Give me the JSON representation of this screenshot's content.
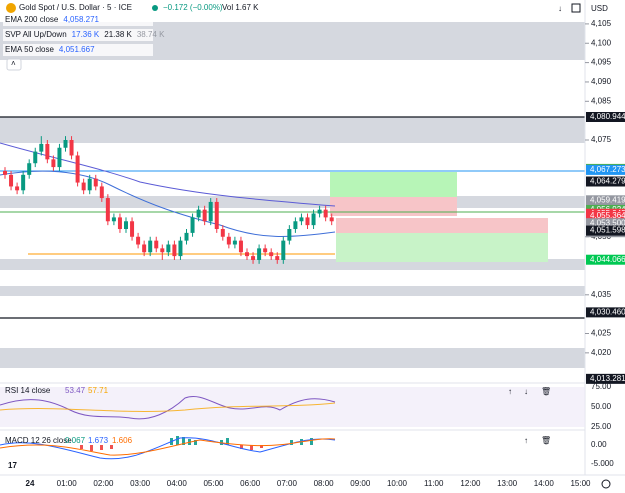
{
  "header": {
    "symbol": "Gold Spot / U.S. Dollar · 5 · ICE",
    "change": "−0.172 (−0.00%)",
    "volume": "Vol 1.67 K",
    "currency": "USD"
  },
  "legend": [
    {
      "name": "EMA 200 close",
      "values": [
        "4,058.271"
      ]
    },
    {
      "name": "SVP All Up/Down",
      "values": [
        "17.36 K",
        "21.38 K",
        "38.74 K"
      ]
    },
    {
      "name": "EMA 50 close",
      "values": [
        "4,051.667"
      ]
    }
  ],
  "price_axis": {
    "ticks": [
      {
        "value": 4105,
        "label": "4,105"
      },
      {
        "value": 4100,
        "label": "4,100"
      },
      {
        "value": 4095,
        "label": "4,095"
      },
      {
        "value": 4090,
        "label": "4,090"
      },
      {
        "value": 4085,
        "label": "4,085"
      },
      {
        "value": 4075,
        "label": "4,075"
      },
      {
        "value": 4050,
        "label": "4,050"
      },
      {
        "value": 4035,
        "label": "4,035"
      },
      {
        "value": 4025,
        "label": "4,025"
      },
      {
        "value": 4020,
        "label": "4,020"
      }
    ],
    "labels": [
      {
        "value": 4080.944,
        "label": "4,080.944",
        "color": "#131722"
      },
      {
        "value": 4067.531,
        "label": "4,067.531",
        "color": "#4caf50"
      },
      {
        "value": 4067.273,
        "label": "4,067.273",
        "color": "#2196f3"
      },
      {
        "value": 4064.279,
        "label": "4,064.279",
        "color": "#131722"
      },
      {
        "value": 4059.419,
        "label": "4,059.419",
        "color": "#9598a1"
      },
      {
        "value": 4056.924,
        "label": "4,056.924",
        "color": "#4caf50"
      },
      {
        "value": 4055.943,
        "label": "4,055.943",
        "color": "#f23645"
      },
      {
        "value": 4055.364,
        "label": "4,055.364",
        "color": "#f23645"
      },
      {
        "value": 4053.5,
        "label": "4,053.500",
        "color": "#9598a1"
      },
      {
        "value": 4051.598,
        "label": "4,051.598",
        "color": "#131722"
      },
      {
        "value": 4044.066,
        "label": "4,044.066",
        "color": "#00c853"
      },
      {
        "value": 4030.46,
        "label": "4,030.460",
        "color": "#131722"
      },
      {
        "value": 4013.281,
        "label": "4,013.281",
        "color": "#131722"
      }
    ],
    "countdown": "04:05"
  },
  "time_axis": [
    "24",
    "01:00",
    "02:00",
    "03:00",
    "04:00",
    "05:00",
    "06:00",
    "07:00",
    "08:00",
    "09:00",
    "10:00",
    "11:00",
    "12:00",
    "13:00",
    "14:00",
    "15:00"
  ],
  "candles": [
    [
      4067,
      4068,
      4065,
      4066
    ],
    [
      4066,
      4067,
      4062,
      4063
    ],
    [
      4063,
      4064,
      4061,
      4062
    ],
    [
      4062,
      4067,
      4061,
      4066
    ],
    [
      4066,
      4070,
      4065,
      4069
    ],
    [
      4069,
      4073,
      4068,
      4072
    ],
    [
      4072,
      4076,
      4071,
      4074
    ],
    [
      4074,
      4075,
      4069,
      4070
    ],
    [
      4070,
      4071,
      4067,
      4068
    ],
    [
      4068,
      4074,
      4067,
      4073
    ],
    [
      4073,
      4076,
      4072,
      4075
    ],
    [
      4075,
      4076,
      4070,
      4071
    ],
    [
      4071,
      4072,
      4063,
      4064
    ],
    [
      4064,
      4065,
      4061,
      4062
    ],
    [
      4062,
      4066,
      4061,
      4065
    ],
    [
      4065,
      4066,
      4062,
      4063
    ],
    [
      4063,
      4064,
      4059,
      4060
    ],
    [
      4060,
      4061,
      4053,
      4054
    ],
    [
      4054,
      4056,
      4053,
      4055
    ],
    [
      4055,
      4056,
      4051,
      4052
    ],
    [
      4052,
      4055,
      4051,
      4054
    ],
    [
      4054,
      4055,
      4049,
      4050
    ],
    [
      4050,
      4051,
      4047,
      4048
    ],
    [
      4048,
      4049,
      4045,
      4046
    ],
    [
      4046,
      4050,
      4045,
      4049
    ],
    [
      4049,
      4050,
      4046,
      4047
    ],
    [
      4047,
      4048,
      4044,
      4046
    ],
    [
      4046,
      4049,
      4045,
      4048
    ],
    [
      4048,
      4049,
      4044,
      4045
    ],
    [
      4045,
      4050,
      4044,
      4049
    ],
    [
      4049,
      4052,
      4048,
      4051
    ],
    [
      4051,
      4056,
      4050,
      4055
    ],
    [
      4055,
      4058,
      4054,
      4057
    ],
    [
      4057,
      4058,
      4053,
      4054
    ],
    [
      4054,
      4060,
      4053,
      4059
    ],
    [
      4059,
      4060,
      4051,
      4052
    ],
    [
      4052,
      4053,
      4049,
      4050
    ],
    [
      4050,
      4051,
      4047,
      4048
    ],
    [
      4048,
      4050,
      4047,
      4049
    ],
    [
      4049,
      4050,
      4045,
      4046
    ],
    [
      4046,
      4047,
      4044,
      4045
    ],
    [
      4045,
      4046,
      4043,
      4044
    ],
    [
      4044,
      4048,
      4043,
      4047
    ],
    [
      4047,
      4048,
      4045,
      4046
    ],
    [
      4046,
      4047,
      4044,
      4045
    ],
    [
      4045,
      4046,
      4043,
      4044
    ],
    [
      4044,
      4050,
      4043,
      4049
    ],
    [
      4049,
      4053,
      4048,
      4052
    ],
    [
      4052,
      4055,
      4051,
      4054
    ],
    [
      4054,
      4056,
      4053,
      4055
    ],
    [
      4055,
      4056,
      4052,
      4053
    ],
    [
      4053,
      4057,
      4052,
      4056
    ],
    [
      4056,
      4058,
      4055,
      4057
    ],
    [
      4057,
      4058,
      4054,
      4055
    ],
    [
      4055,
      4056,
      4053,
      4054
    ]
  ],
  "rsi": {
    "title": "RSI 14 close",
    "values": [
      "53.47",
      "57.71"
    ],
    "ticks": [
      "75.00",
      "50.00",
      "25.00"
    ]
  },
  "macd": {
    "title": "MACD 12 26 close",
    "values": [
      "0.067",
      "1.673",
      "1.606"
    ],
    "ticks": [
      "0.00",
      "-5.000"
    ]
  }
}
